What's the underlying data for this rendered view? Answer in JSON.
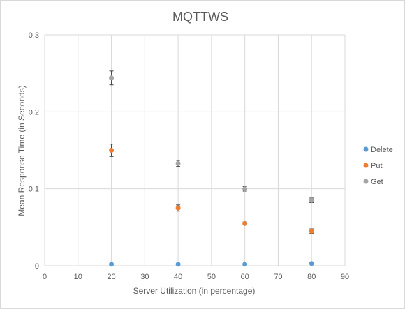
{
  "chart_data": {
    "type": "scatter",
    "title": "MQTTWS",
    "xlabel": "Server Utilization (in percentage)",
    "ylabel": "Mean Response Time (in Seconds)",
    "xlim": [
      0,
      90
    ],
    "ylim": [
      0,
      0.3
    ],
    "x_ticks": [
      0,
      10,
      20,
      30,
      40,
      50,
      60,
      70,
      80,
      90
    ],
    "y_ticks": [
      0,
      0.1,
      0.2,
      0.3
    ],
    "x_tick_labels": [
      "0",
      "10",
      "20",
      "30",
      "40",
      "50",
      "60",
      "70",
      "80",
      "90"
    ],
    "y_tick_labels": [
      "0",
      "0.1",
      "0.2",
      "0.3"
    ],
    "grid": true,
    "legend_position": "right",
    "series": [
      {
        "name": "Delete",
        "color": "#5b9bd5",
        "points": [
          {
            "x": 20,
            "y": 0.002,
            "err": 0
          },
          {
            "x": 40,
            "y": 0.002,
            "err": 0
          },
          {
            "x": 60,
            "y": 0.002,
            "err": 0
          },
          {
            "x": 80,
            "y": 0.003,
            "err": 0
          }
        ]
      },
      {
        "name": "Put",
        "color": "#ed7d31",
        "points": [
          {
            "x": 20,
            "y": 0.15,
            "err": 0.008
          },
          {
            "x": 40,
            "y": 0.075,
            "err": 0.004
          },
          {
            "x": 60,
            "y": 0.055,
            "err": 0.002
          },
          {
            "x": 80,
            "y": 0.045,
            "err": 0.003
          }
        ]
      },
      {
        "name": "Get",
        "color": "#a5a5a5",
        "points": [
          {
            "x": 20,
            "y": 0.244,
            "err": 0.009
          },
          {
            "x": 40,
            "y": 0.133,
            "err": 0.004
          },
          {
            "x": 60,
            "y": 0.1,
            "err": 0.003
          },
          {
            "x": 80,
            "y": 0.085,
            "err": 0.003
          }
        ]
      }
    ]
  }
}
